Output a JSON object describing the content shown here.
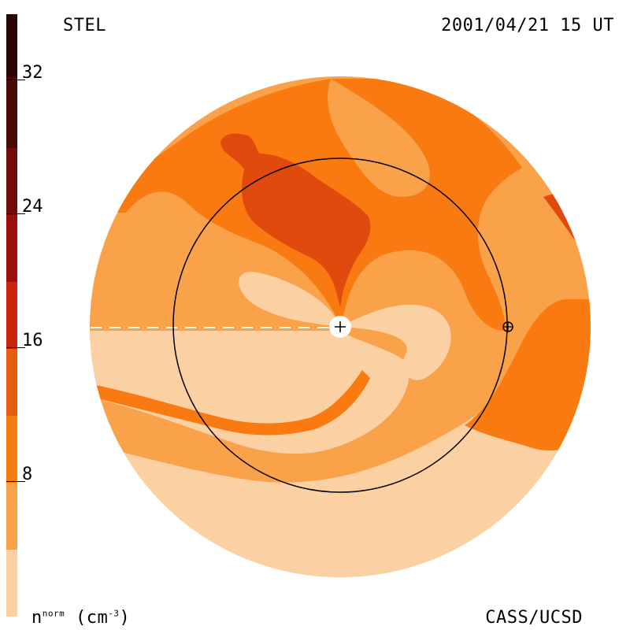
{
  "header": {
    "instrument": "STEL",
    "timestamp": "2001/04/21 15 UT"
  },
  "footer": {
    "units_label_main": "n",
    "units_label_sup": "norm",
    "units_label_rest": " (cm",
    "units_label_exp": "-3",
    "units_label_close": ")",
    "credit": "CASS/UCSD"
  },
  "colorbar": {
    "ticks": [
      "32",
      "24",
      "16",
      "8"
    ],
    "colors": [
      "#fbd0a2",
      "#f9a24a",
      "#f97a10",
      "#e65d12",
      "#c7240e",
      "#941009",
      "#6b0c06",
      "#3a0a06"
    ]
  },
  "colors": {
    "lightest": "#fbd0a2",
    "light": "#f9a24a",
    "medium": "#f97a10",
    "dark": "#e04a0c",
    "orbit_line": "#000000",
    "sun_marker": "#ffffff"
  },
  "markers": {
    "sun": "+",
    "earth": "⊕"
  }
}
